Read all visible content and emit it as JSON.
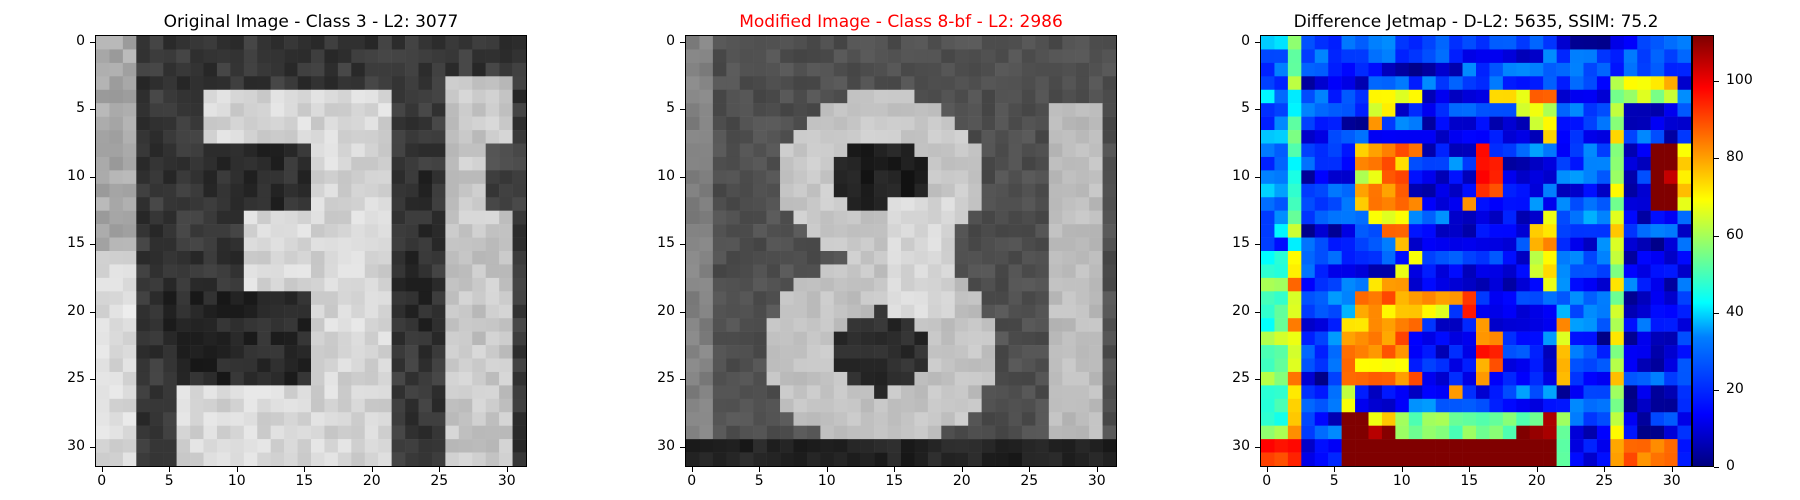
{
  "panels": [
    {
      "title": "Original Image - Class 3 - L2: 3077",
      "title_color": "#000000"
    },
    {
      "title": "Modified Image - Class 8-bf - L2: 2986",
      "title_color": "#ff0000"
    },
    {
      "title": "Difference Jetmap - D-L2: 5635, SSIM: 75.2",
      "title_color": "#000000"
    }
  ],
  "axes": {
    "y_ticks": [
      "0",
      "5",
      "10",
      "15",
      "20",
      "25",
      "30"
    ],
    "x_ticks": [
      "0",
      "5",
      "10",
      "15",
      "20",
      "25",
      "30"
    ],
    "pixel_grid": 32
  },
  "colorbar": {
    "ticks": [
      "0",
      "20",
      "40",
      "60",
      "80",
      "100"
    ],
    "max": 112,
    "colormap": "jet"
  }
}
